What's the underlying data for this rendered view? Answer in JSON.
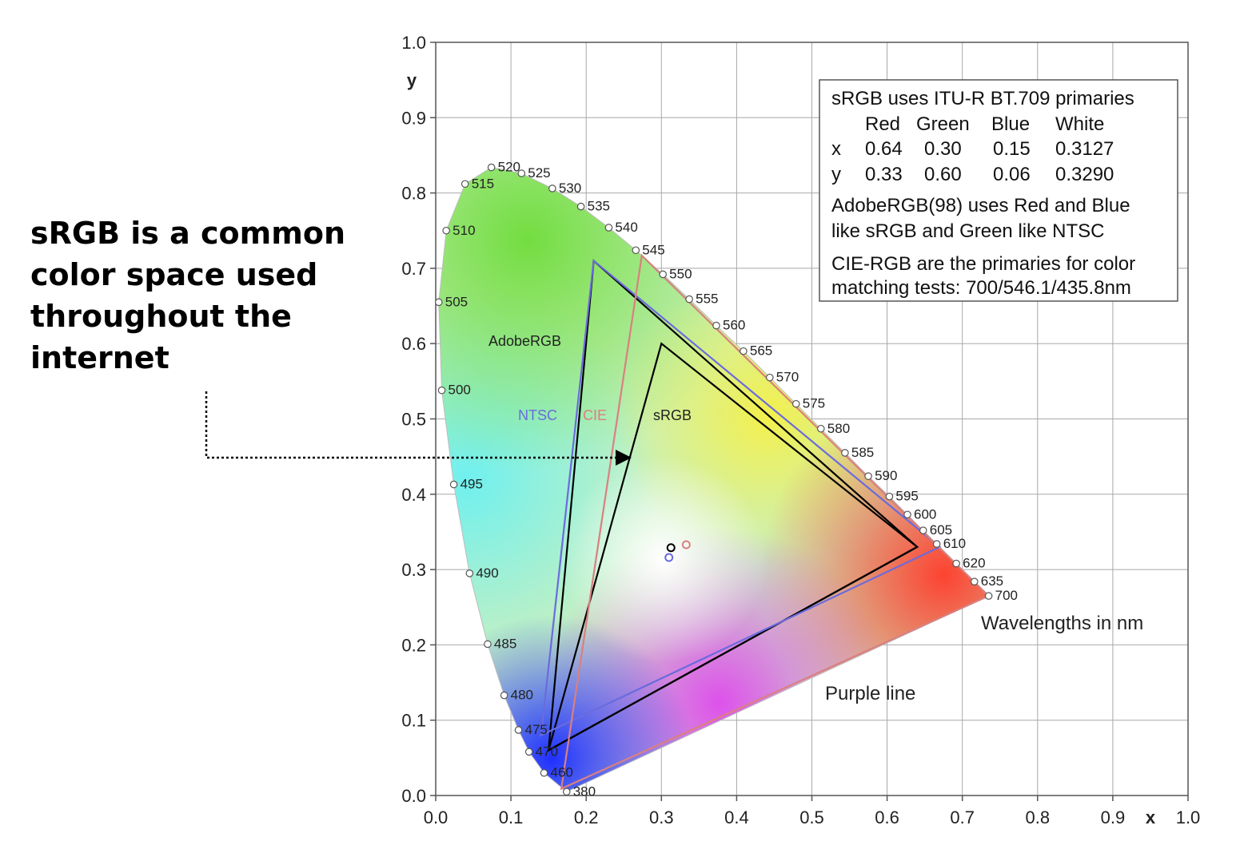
{
  "annotation": {
    "lines": [
      "sRGB is a common",
      "color space used",
      "throughout the",
      "internet"
    ]
  },
  "chart_data": {
    "type": "scatter",
    "subtype": "CIE 1931 chromaticity diagram",
    "xlabel": "x",
    "ylabel": "y",
    "xlim": [
      0.0,
      1.0
    ],
    "ylim": [
      0.0,
      1.0
    ],
    "xticks": [
      "0.0",
      "0.1",
      "0.2",
      "0.3",
      "0.4",
      "0.5",
      "0.6",
      "0.7",
      "0.8",
      "0.9",
      "1.0"
    ],
    "yticks": [
      "0.0",
      "0.1",
      "0.2",
      "0.3",
      "0.4",
      "0.5",
      "0.6",
      "0.7",
      "0.8",
      "0.9",
      "1.0"
    ],
    "grid": true,
    "spectral_locus": [
      {
        "nm": "380",
        "x": 0.174,
        "y": 0.005
      },
      {
        "nm": "460",
        "x": 0.144,
        "y": 0.03
      },
      {
        "nm": "470",
        "x": 0.124,
        "y": 0.058
      },
      {
        "nm": "475",
        "x": 0.11,
        "y": 0.087
      },
      {
        "nm": "480",
        "x": 0.091,
        "y": 0.133
      },
      {
        "nm": "485",
        "x": 0.069,
        "y": 0.201
      },
      {
        "nm": "490",
        "x": 0.045,
        "y": 0.295
      },
      {
        "nm": "495",
        "x": 0.024,
        "y": 0.413
      },
      {
        "nm": "500",
        "x": 0.008,
        "y": 0.538
      },
      {
        "nm": "505",
        "x": 0.004,
        "y": 0.655
      },
      {
        "nm": "510",
        "x": 0.014,
        "y": 0.75
      },
      {
        "nm": "515",
        "x": 0.039,
        "y": 0.812
      },
      {
        "nm": "520",
        "x": 0.074,
        "y": 0.834
      },
      {
        "nm": "525",
        "x": 0.114,
        "y": 0.826
      },
      {
        "nm": "530",
        "x": 0.155,
        "y": 0.806
      },
      {
        "nm": "535",
        "x": 0.193,
        "y": 0.782
      },
      {
        "nm": "540",
        "x": 0.23,
        "y": 0.754
      },
      {
        "nm": "545",
        "x": 0.266,
        "y": 0.724
      },
      {
        "nm": "550",
        "x": 0.302,
        "y": 0.692
      },
      {
        "nm": "555",
        "x": 0.337,
        "y": 0.659
      },
      {
        "nm": "560",
        "x": 0.373,
        "y": 0.624
      },
      {
        "nm": "565",
        "x": 0.409,
        "y": 0.59
      },
      {
        "nm": "570",
        "x": 0.444,
        "y": 0.555
      },
      {
        "nm": "575",
        "x": 0.479,
        "y": 0.52
      },
      {
        "nm": "580",
        "x": 0.512,
        "y": 0.487
      },
      {
        "nm": "585",
        "x": 0.544,
        "y": 0.455
      },
      {
        "nm": "590",
        "x": 0.575,
        "y": 0.424
      },
      {
        "nm": "595",
        "x": 0.603,
        "y": 0.397
      },
      {
        "nm": "600",
        "x": 0.627,
        "y": 0.373
      },
      {
        "nm": "605",
        "x": 0.648,
        "y": 0.352
      },
      {
        "nm": "610",
        "x": 0.666,
        "y": 0.334
      },
      {
        "nm": "620",
        "x": 0.692,
        "y": 0.308
      },
      {
        "nm": "635",
        "x": 0.716,
        "y": 0.284
      },
      {
        "nm": "700",
        "x": 0.735,
        "y": 0.265
      }
    ],
    "gamuts": [
      {
        "name": "sRGB",
        "color": "#000000",
        "points": [
          [
            0.64,
            0.33
          ],
          [
            0.3,
            0.6
          ],
          [
            0.15,
            0.06
          ]
        ],
        "white": [
          0.3127,
          0.329
        ]
      },
      {
        "name": "AdobeRGB",
        "color": "#000000",
        "points": [
          [
            0.64,
            0.33
          ],
          [
            0.21,
            0.71
          ],
          [
            0.15,
            0.06
          ]
        ]
      },
      {
        "name": "NTSC",
        "color": "#6b6bdc",
        "points": [
          [
            0.67,
            0.33
          ],
          [
            0.21,
            0.71
          ],
          [
            0.14,
            0.08
          ]
        ],
        "white": [
          0.31,
          0.316
        ]
      },
      {
        "name": "CIE",
        "color": "#d98080",
        "points": [
          [
            0.735,
            0.265
          ],
          [
            0.274,
            0.717
          ],
          [
            0.167,
            0.009
          ]
        ],
        "white": [
          0.333,
          0.333
        ]
      }
    ],
    "gamut_labels": [
      {
        "text": "AdobeRGB",
        "color": "#222222"
      },
      {
        "text": "NTSC",
        "color": "#6b6bdc"
      },
      {
        "text": "CIE",
        "color": "#d98080"
      },
      {
        "text": "sRGB",
        "color": "#222222"
      }
    ],
    "info_box": {
      "line1": "sRGB uses ITU-R BT.709 primaries",
      "header": [
        "Red",
        "Green",
        "Blue",
        "White"
      ],
      "rows": [
        {
          "label": "x",
          "values": [
            "0.64",
            "0.30",
            "0.15",
            "0.3127"
          ]
        },
        {
          "label": "y",
          "values": [
            "0.33",
            "0.60",
            "0.06",
            "0.3290"
          ]
        }
      ],
      "line4a": "AdobeRGB(98) uses Red and Blue",
      "line4b": "like sRGB and Green like NTSC",
      "line5a": "CIE-RGB are the primaries for color",
      "line5b": "matching tests: 700/546.1/435.8nm"
    },
    "annotations": [
      "Wavelengths in nm",
      "Purple line"
    ]
  }
}
